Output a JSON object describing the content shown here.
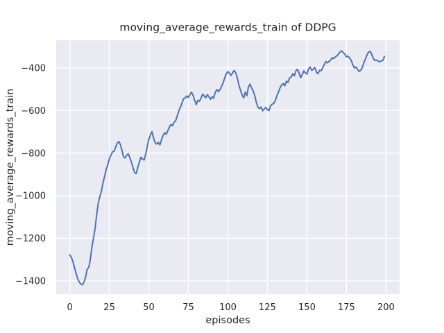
{
  "figure": {
    "title": "moving_average_rewards_train of DDPG",
    "xlabel": "episodes",
    "ylabel": "moving_average_rewards_train"
  },
  "chart_data": {
    "type": "line",
    "title": "moving_average_rewards_train of DDPG",
    "xlabel": "episodes",
    "ylabel": "moving_average_rewards_train",
    "grid": true,
    "legend": null,
    "background_color": "#eaeaf2",
    "grid_color": "#ffffff",
    "line_color": "#4c72b0",
    "text_color": "#262626",
    "xlim": [
      -8.6,
      208.6
    ],
    "ylim": [
      -1462,
      -271
    ],
    "xticks": {
      "values": [
        0,
        25,
        50,
        75,
        100,
        125,
        150,
        175,
        200
      ],
      "labels": [
        "0",
        "25",
        "50",
        "75",
        "100",
        "125",
        "150",
        "175",
        "200"
      ]
    },
    "yticks": {
      "values": [
        -400,
        -600,
        -800,
        -1000,
        -1200,
        -1400
      ],
      "labels": [
        "−400",
        "−600",
        "−800",
        "−1000",
        "−1200",
        "−1400"
      ]
    },
    "series": [
      {
        "name": "moving_average_rewards_train",
        "x_start": 0,
        "x_step": 1,
        "y": [
          -1278,
          -1290,
          -1310,
          -1338,
          -1365,
          -1390,
          -1405,
          -1415,
          -1418,
          -1405,
          -1382,
          -1345,
          -1336,
          -1300,
          -1240,
          -1200,
          -1155,
          -1090,
          -1035,
          -1005,
          -980,
          -940,
          -910,
          -878,
          -855,
          -828,
          -810,
          -795,
          -792,
          -773,
          -754,
          -746,
          -760,
          -788,
          -818,
          -823,
          -810,
          -804,
          -822,
          -843,
          -870,
          -892,
          -897,
          -868,
          -843,
          -820,
          -828,
          -833,
          -806,
          -770,
          -735,
          -715,
          -700,
          -730,
          -752,
          -758,
          -750,
          -762,
          -738,
          -718,
          -705,
          -712,
          -695,
          -678,
          -666,
          -672,
          -655,
          -648,
          -625,
          -602,
          -585,
          -565,
          -545,
          -541,
          -532,
          -540,
          -525,
          -515,
          -530,
          -553,
          -573,
          -553,
          -557,
          -543,
          -524,
          -532,
          -541,
          -526,
          -536,
          -548,
          -536,
          -543,
          -515,
          -503,
          -512,
          -503,
          -487,
          -470,
          -448,
          -428,
          -418,
          -426,
          -436,
          -423,
          -413,
          -424,
          -449,
          -482,
          -506,
          -528,
          -541,
          -514,
          -531,
          -489,
          -477,
          -496,
          -508,
          -532,
          -563,
          -585,
          -592,
          -584,
          -602,
          -593,
          -586,
          -597,
          -601,
          -578,
          -571,
          -567,
          -554,
          -531,
          -514,
          -494,
          -481,
          -474,
          -485,
          -463,
          -469,
          -448,
          -444,
          -428,
          -438,
          -415,
          -407,
          -424,
          -447,
          -432,
          -415,
          -424,
          -430,
          -405,
          -397,
          -412,
          -407,
          -399,
          -421,
          -428,
          -412,
          -414,
          -400,
          -384,
          -371,
          -377,
          -370,
          -364,
          -353,
          -357,
          -349,
          -344,
          -335,
          -326,
          -321,
          -330,
          -336,
          -349,
          -346,
          -354,
          -366,
          -386,
          -401,
          -396,
          -408,
          -417,
          -412,
          -399,
          -376,
          -359,
          -339,
          -326,
          -323,
          -338,
          -357,
          -366,
          -364,
          -368,
          -373,
          -368,
          -366,
          -347
        ]
      }
    ]
  }
}
